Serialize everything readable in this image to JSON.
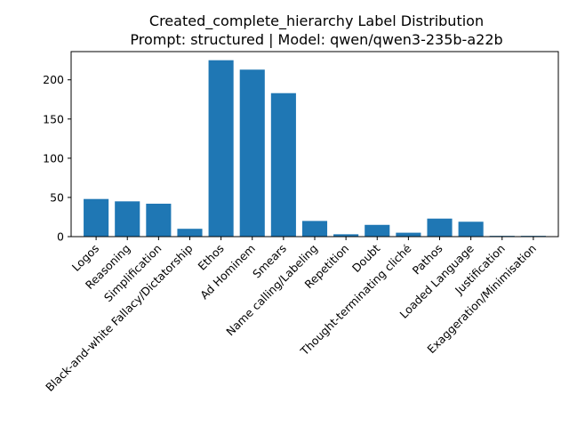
{
  "chart_data": {
    "type": "bar",
    "title": "Created_complete_hierarchy Label Distribution",
    "subtitle": "Prompt: structured | Model: qwen/qwen3-235b-a22b",
    "xlabel": "",
    "ylabel": "",
    "ylim": [
      0,
      236
    ],
    "yticks": [
      0,
      50,
      100,
      150,
      200
    ],
    "grid": false,
    "bar_color": "#1f77b4",
    "categories": [
      "Logos",
      "Reasoning",
      "Simplification",
      "Black-and-white Fallacy/Dictatorship",
      "Ethos",
      "Ad Hominem",
      "Smears",
      "Name calling/Labeling",
      "Repetition",
      "Doubt",
      "Thought-terminating cliché",
      "Pathos",
      "Loaded Language",
      "Justification",
      "Exaggeration/Minimisation"
    ],
    "values": [
      48,
      45,
      42,
      10,
      225,
      213,
      183,
      20,
      3,
      15,
      5,
      23,
      19,
      1,
      1
    ]
  }
}
